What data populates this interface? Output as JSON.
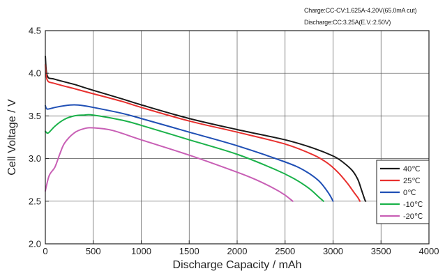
{
  "header": {
    "charge_note": "Charge:CC-CV:1.625A-4.20V(65.0mA cut)",
    "discharge_note": "Discharge:CC:3.25A(E.V.:2.50V)"
  },
  "chart_data": {
    "type": "line",
    "title": "",
    "xlabel": "Discharge  Capacity  /  mAh",
    "ylabel": "Cell  Voltage  /  V",
    "xlim": [
      0,
      4000
    ],
    "ylim": [
      2.0,
      4.5
    ],
    "xticks": [
      0,
      500,
      1000,
      1500,
      2000,
      2500,
      3000,
      3500,
      4000
    ],
    "yticks": [
      2.0,
      2.5,
      3.0,
      3.5,
      4.0,
      4.5
    ],
    "xtick_labels": [
      "0",
      "500",
      "1000",
      "1500",
      "2000",
      "2500",
      "3000",
      "3500",
      "4000"
    ],
    "ytick_labels": [
      "2.0",
      "2.5",
      "3.0",
      "3.5",
      "4.0",
      "4.5"
    ],
    "grid": true,
    "legend_position": "lower-right",
    "series": [
      {
        "name": "40℃",
        "color": "#1a1a1a",
        "x": [
          0,
          20,
          100,
          300,
          500,
          800,
          1000,
          1500,
          2000,
          2500,
          2800,
          3000,
          3100,
          3200,
          3260,
          3300,
          3330,
          3340
        ],
        "y": [
          4.2,
          3.97,
          3.93,
          3.87,
          3.8,
          3.7,
          3.63,
          3.47,
          3.34,
          3.22,
          3.12,
          3.03,
          2.96,
          2.86,
          2.75,
          2.62,
          2.52,
          2.5
        ]
      },
      {
        "name": "25℃",
        "color": "#e8312f",
        "x": [
          0,
          20,
          100,
          300,
          500,
          800,
          1000,
          1500,
          2000,
          2500,
          2800,
          2950,
          3050,
          3150,
          3220,
          3260,
          3280
        ],
        "y": [
          4.1,
          3.92,
          3.88,
          3.82,
          3.76,
          3.67,
          3.6,
          3.44,
          3.31,
          3.17,
          3.04,
          2.94,
          2.84,
          2.71,
          2.6,
          2.54,
          2.5
        ]
      },
      {
        "name": "0℃",
        "color": "#1f4fb5",
        "x": [
          0,
          20,
          100,
          200,
          300,
          400,
          500,
          800,
          1000,
          1500,
          2000,
          2500,
          2700,
          2850,
          2950,
          3000
        ],
        "y": [
          3.62,
          3.58,
          3.6,
          3.62,
          3.63,
          3.62,
          3.6,
          3.53,
          3.47,
          3.31,
          3.15,
          2.96,
          2.86,
          2.74,
          2.6,
          2.5
        ]
      },
      {
        "name": "-10℃",
        "color": "#1bb24a",
        "x": [
          0,
          30,
          100,
          200,
          300,
          400,
          500,
          800,
          1000,
          1500,
          2000,
          2400,
          2600,
          2750,
          2850,
          2900
        ],
        "y": [
          3.32,
          3.3,
          3.38,
          3.46,
          3.5,
          3.51,
          3.51,
          3.45,
          3.39,
          3.22,
          3.05,
          2.87,
          2.76,
          2.65,
          2.55,
          2.5
        ]
      },
      {
        "name": "-20℃",
        "color": "#c85fb5",
        "x": [
          0,
          40,
          100,
          150,
          200,
          300,
          400,
          500,
          700,
          1000,
          1500,
          2000,
          2200,
          2400,
          2500,
          2580
        ],
        "y": [
          2.62,
          2.8,
          2.9,
          3.05,
          3.18,
          3.3,
          3.35,
          3.36,
          3.33,
          3.22,
          3.04,
          2.84,
          2.75,
          2.64,
          2.57,
          2.5
        ]
      }
    ]
  }
}
